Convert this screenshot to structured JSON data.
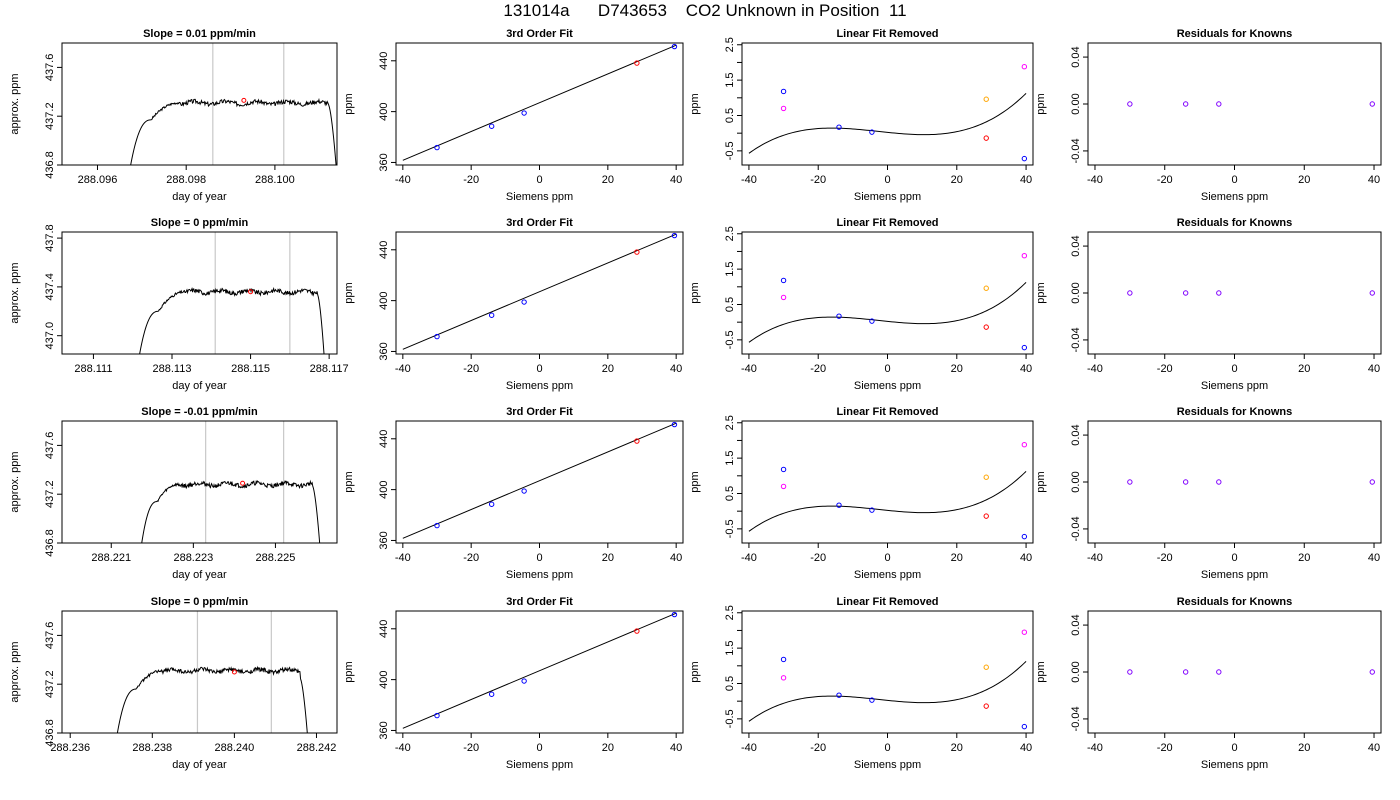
{
  "title": "131014a      D743653    CO2 Unknown in Position  11",
  "colors": {
    "known": "#0000ff",
    "unknown": "#ff0000",
    "raw_known": "#ff00ff",
    "raw_unknown": "#ffa500",
    "residual": "#8000ff",
    "curve": "#000000",
    "vline": "#c8c8c8"
  },
  "chart_data": [
    {
      "type": "line",
      "title": "Slope =  0.01  ppm/min",
      "xlabel": "day of year",
      "ylabel": "approx. ppm",
      "xlim": [
        288.0952,
        288.1014
      ],
      "ylim": [
        436.8,
        437.8
      ],
      "xticks": [
        288.096,
        288.098,
        288.1
      ],
      "xticklabels": [
        "288.096",
        "288.098",
        "288.100"
      ],
      "yticks": [
        436.8,
        437.2,
        437.6
      ],
      "yticklabels": [
        "436.8",
        "437.2",
        "437.6"
      ],
      "vlines": [
        288.0986,
        288.1002
      ],
      "marker": {
        "x": 288.0993,
        "y": 437.33
      },
      "trace": {
        "x0": 288.0967,
        "x1": 288.099,
        "x2": 288.1012,
        "x3": 288.1014,
        "base": 436.7,
        "plateau": 437.31,
        "start": 437.17,
        "end": 437.3
      }
    },
    {
      "type": "scatter",
      "title": "3rd Order Fit",
      "xlabel": "Siemens ppm",
      "ylabel": "ppm",
      "xlim": [
        -42,
        42
      ],
      "ylim": [
        358,
        454
      ],
      "xticks": [
        -40,
        -20,
        0,
        20,
        40
      ],
      "xticklabels": [
        "-40",
        "-20",
        "0",
        "20",
        "40"
      ],
      "yticks": [
        360,
        400,
        440
      ],
      "yticklabels": [
        "360",
        "400",
        "440"
      ],
      "line": [
        [
          -40,
          361.7
        ],
        [
          40,
          452.3
        ]
      ],
      "known": [
        {
          "x": -30,
          "y": 371.7
        },
        {
          "x": -14,
          "y": 388.5
        },
        {
          "x": -4.5,
          "y": 398.9
        },
        {
          "x": 39.5,
          "y": 451.2
        }
      ],
      "unknown": [
        {
          "x": 28.5,
          "y": 438.2
        }
      ]
    },
    {
      "type": "scatter",
      "title": "Linear Fit Removed",
      "xlabel": "Siemens ppm",
      "ylabel": "ppm",
      "xlim": [
        -42,
        42
      ],
      "ylim": [
        -0.9,
        2.55
      ],
      "xticks": [
        -40,
        -20,
        0,
        20,
        40
      ],
      "xticklabels": [
        "-40",
        "-20",
        "0",
        "20",
        "40"
      ],
      "yticks": [
        -0.5,
        0.5,
        1.5,
        2.5
      ],
      "yticklabels": [
        "-0.5",
        "0.5",
        "1.5",
        "2.5"
      ],
      "yminorticks": [
        0,
        1,
        2
      ],
      "curve": {
        "x0": -40,
        "x1": 40,
        "p": [
          0.0226,
          -0.01,
          0.00016,
          1.95e-05
        ]
      },
      "known": [
        {
          "x": -30,
          "y": 1.18
        },
        {
          "x": -14,
          "y": 0.17
        },
        {
          "x": -4.5,
          "y": 0.03
        },
        {
          "x": 39.5,
          "y": -0.72
        }
      ],
      "unknown": [
        {
          "x": 28.5,
          "y": -0.14
        }
      ],
      "raw_known": [
        {
          "x": -30,
          "y": 0.7
        },
        {
          "x": 39.5,
          "y": 1.88
        }
      ],
      "raw_unknown": [
        {
          "x": 28.5,
          "y": 0.96
        }
      ]
    },
    {
      "type": "scatter",
      "title": "Residuals for Knowns",
      "xlabel": "Siemens ppm",
      "ylabel": "ppm",
      "xlim": [
        -42,
        42
      ],
      "ylim": [
        -0.052,
        0.052
      ],
      "xticks": [
        -40,
        -20,
        0,
        20,
        40
      ],
      "xticklabels": [
        "-40",
        "-20",
        "0",
        "20",
        "40"
      ],
      "yticks": [
        -0.04,
        0,
        0.04
      ],
      "yticklabels": [
        "-0.04",
        "0.00",
        "0.04"
      ],
      "points": [
        {
          "x": -30,
          "y": 0
        },
        {
          "x": -14,
          "y": 0
        },
        {
          "x": -4.5,
          "y": 0
        },
        {
          "x": 39.5,
          "y": 0
        }
      ]
    },
    {
      "type": "line",
      "title": "Slope =  0  ppm/min",
      "xlabel": "day of year",
      "ylabel": "approx. ppm",
      "xlim": [
        288.1102,
        288.1172
      ],
      "ylim": [
        436.85,
        437.85
      ],
      "xticks": [
        288.111,
        288.113,
        288.115,
        288.117
      ],
      "xticklabels": [
        "288.111",
        "288.113",
        "288.115",
        "288.117"
      ],
      "yticks": [
        437.0,
        437.4,
        437.8
      ],
      "yticklabels": [
        "437.0",
        "437.4",
        "437.8"
      ],
      "vlines": [
        288.1141,
        288.116
      ],
      "marker": {
        "x": 288.115,
        "y": 437.36
      },
      "trace": {
        "x0": 288.1121,
        "x1": 288.1146,
        "x2": 288.1167,
        "x3": 288.1169,
        "base": 436.7,
        "plateau": 437.36,
        "start": 437.2,
        "end": 437.34
      }
    },
    {
      "type": "scatter",
      "title": "3rd Order Fit",
      "xlabel": "Siemens ppm",
      "ylabel": "ppm",
      "xlim": [
        -42,
        42
      ],
      "ylim": [
        358,
        454
      ],
      "xticks": [
        -40,
        -20,
        0,
        20,
        40
      ],
      "xticklabels": [
        "-40",
        "-20",
        "0",
        "20",
        "40"
      ],
      "yticks": [
        360,
        400,
        440
      ],
      "yticklabels": [
        "360",
        "400",
        "440"
      ],
      "line": [
        [
          -40,
          361.7
        ],
        [
          40,
          452.3
        ]
      ],
      "known": [
        {
          "x": -30,
          "y": 371.7
        },
        {
          "x": -14,
          "y": 388.5
        },
        {
          "x": -4.5,
          "y": 398.9
        },
        {
          "x": 39.5,
          "y": 451.2
        }
      ],
      "unknown": [
        {
          "x": 28.5,
          "y": 438.2
        }
      ]
    },
    {
      "type": "scatter",
      "title": "Linear Fit Removed",
      "xlabel": "Siemens ppm",
      "ylabel": "ppm",
      "xlim": [
        -42,
        42
      ],
      "ylim": [
        -0.9,
        2.55
      ],
      "xticks": [
        -40,
        -20,
        0,
        20,
        40
      ],
      "xticklabels": [
        "-40",
        "-20",
        "0",
        "20",
        "40"
      ],
      "yticks": [
        -0.5,
        0.5,
        1.5,
        2.5
      ],
      "yticklabels": [
        "-0.5",
        "0.5",
        "1.5",
        "2.5"
      ],
      "yminorticks": [
        0,
        1,
        2
      ],
      "curve": {
        "x0": -40,
        "x1": 40,
        "p": [
          0.0226,
          -0.01,
          0.00016,
          1.95e-05
        ]
      },
      "known": [
        {
          "x": -30,
          "y": 1.18
        },
        {
          "x": -14,
          "y": 0.17
        },
        {
          "x": -4.5,
          "y": 0.03
        },
        {
          "x": 39.5,
          "y": -0.72
        }
      ],
      "unknown": [
        {
          "x": 28.5,
          "y": -0.14
        }
      ],
      "raw_known": [
        {
          "x": -30,
          "y": 0.7
        },
        {
          "x": 39.5,
          "y": 1.88
        }
      ],
      "raw_unknown": [
        {
          "x": 28.5,
          "y": 0.96
        }
      ]
    },
    {
      "type": "scatter",
      "title": "Residuals for Knowns",
      "xlabel": "Siemens ppm",
      "ylabel": "ppm",
      "xlim": [
        -42,
        42
      ],
      "ylim": [
        -0.052,
        0.052
      ],
      "xticks": [
        -40,
        -20,
        0,
        20,
        40
      ],
      "xticklabels": [
        "-40",
        "-20",
        "0",
        "20",
        "40"
      ],
      "yticks": [
        -0.04,
        0,
        0.04
      ],
      "yticklabels": [
        "-0.04",
        "0.00",
        "0.04"
      ],
      "points": [
        {
          "x": -30,
          "y": 0
        },
        {
          "x": -14,
          "y": 0
        },
        {
          "x": -4.5,
          "y": 0
        },
        {
          "x": 39.5,
          "y": 0
        }
      ]
    },
    {
      "type": "line",
      "title": "Slope =  -0.01  ppm/min",
      "xlabel": "day of year",
      "ylabel": "approx. ppm",
      "xlim": [
        288.2198,
        288.2265
      ],
      "ylim": [
        436.8,
        437.8
      ],
      "xticks": [
        288.221,
        288.223,
        288.225
      ],
      "xticklabels": [
        "288.221",
        "288.223",
        "288.225"
      ],
      "yticks": [
        436.8,
        437.2,
        437.6
      ],
      "yticklabels": [
        "436.8",
        "437.2",
        "437.6"
      ],
      "vlines": [
        288.2233,
        288.2252
      ],
      "marker": {
        "x": 288.2242,
        "y": 437.29
      },
      "trace": {
        "x0": 288.2217,
        "x1": 288.2236,
        "x2": 288.2259,
        "x3": 288.2261,
        "base": 436.7,
        "plateau": 437.28,
        "start": 437.14,
        "end": 437.27
      }
    },
    {
      "type": "scatter",
      "title": "3rd Order Fit",
      "xlabel": "Siemens ppm",
      "ylabel": "ppm",
      "xlim": [
        -42,
        42
      ],
      "ylim": [
        358,
        454
      ],
      "xticks": [
        -40,
        -20,
        0,
        20,
        40
      ],
      "xticklabels": [
        "-40",
        "-20",
        "0",
        "20",
        "40"
      ],
      "yticks": [
        360,
        400,
        440
      ],
      "yticklabels": [
        "360",
        "400",
        "440"
      ],
      "line": [
        [
          -40,
          361.7
        ],
        [
          40,
          452.3
        ]
      ],
      "known": [
        {
          "x": -30,
          "y": 371.7
        },
        {
          "x": -14,
          "y": 388.5
        },
        {
          "x": -4.5,
          "y": 398.9
        },
        {
          "x": 39.5,
          "y": 451.2
        }
      ],
      "unknown": [
        {
          "x": 28.5,
          "y": 438.2
        }
      ]
    },
    {
      "type": "scatter",
      "title": "Linear Fit Removed",
      "xlabel": "Siemens ppm",
      "ylabel": "ppm",
      "xlim": [
        -42,
        42
      ],
      "ylim": [
        -0.9,
        2.55
      ],
      "xticks": [
        -40,
        -20,
        0,
        20,
        40
      ],
      "xticklabels": [
        "-40",
        "-20",
        "0",
        "20",
        "40"
      ],
      "yticks": [
        -0.5,
        0.5,
        1.5,
        2.5
      ],
      "yticklabels": [
        "-0.5",
        "0.5",
        "1.5",
        "2.5"
      ],
      "yminorticks": [
        0,
        1,
        2
      ],
      "curve": {
        "x0": -40,
        "x1": 40,
        "p": [
          0.0226,
          -0.01,
          0.00016,
          1.95e-05
        ]
      },
      "known": [
        {
          "x": -30,
          "y": 1.18
        },
        {
          "x": -14,
          "y": 0.17
        },
        {
          "x": -4.5,
          "y": 0.03
        },
        {
          "x": 39.5,
          "y": -0.72
        }
      ],
      "unknown": [
        {
          "x": 28.5,
          "y": -0.14
        }
      ],
      "raw_known": [
        {
          "x": -30,
          "y": 0.7
        },
        {
          "x": 39.5,
          "y": 1.88
        }
      ],
      "raw_unknown": [
        {
          "x": 28.5,
          "y": 0.96
        }
      ]
    },
    {
      "type": "scatter",
      "title": "Residuals for Knowns",
      "xlabel": "Siemens ppm",
      "ylabel": "ppm",
      "xlim": [
        -42,
        42
      ],
      "ylim": [
        -0.052,
        0.052
      ],
      "xticks": [
        -40,
        -20,
        0,
        20,
        40
      ],
      "xticklabels": [
        "-40",
        "-20",
        "0",
        "20",
        "40"
      ],
      "yticks": [
        -0.04,
        0,
        0.04
      ],
      "yticklabels": [
        "-0.04",
        "0.00",
        "0.04"
      ],
      "points": [
        {
          "x": -30,
          "y": 0
        },
        {
          "x": -14,
          "y": 0
        },
        {
          "x": -4.5,
          "y": 0
        },
        {
          "x": 39.5,
          "y": 0
        }
      ]
    },
    {
      "type": "line",
      "title": "Slope =  0  ppm/min",
      "xlabel": "day of year",
      "ylabel": "approx. ppm",
      "xlim": [
        288.2358,
        288.2425
      ],
      "ylim": [
        436.8,
        437.8
      ],
      "xticks": [
        288.236,
        288.238,
        288.24,
        288.242
      ],
      "xticklabels": [
        "288.236",
        "288.238",
        "288.240",
        "288.242"
      ],
      "yticks": [
        436.8,
        437.2,
        437.6
      ],
      "yticklabels": [
        "436.8",
        "437.2",
        "437.6"
      ],
      "vlines": [
        288.2391,
        288.2409
      ],
      "marker": {
        "x": 288.24,
        "y": 437.3
      },
      "trace": {
        "x0": 288.2371,
        "x1": 288.2394,
        "x2": 288.2416,
        "x3": 288.2418,
        "base": 436.7,
        "plateau": 437.31,
        "start": 437.16,
        "end": 437.25
      }
    },
    {
      "type": "scatter",
      "title": "3rd Order Fit",
      "xlabel": "Siemens ppm",
      "ylabel": "ppm",
      "xlim": [
        -42,
        42
      ],
      "ylim": [
        358,
        454
      ],
      "xticks": [
        -40,
        -20,
        0,
        20,
        40
      ],
      "xticklabels": [
        "-40",
        "-20",
        "0",
        "20",
        "40"
      ],
      "yticks": [
        360,
        400,
        440
      ],
      "yticklabels": [
        "360",
        "400",
        "440"
      ],
      "line": [
        [
          -40,
          361.7
        ],
        [
          40,
          452.3
        ]
      ],
      "known": [
        {
          "x": -30,
          "y": 371.7
        },
        {
          "x": -14,
          "y": 388.5
        },
        {
          "x": -4.5,
          "y": 398.9
        },
        {
          "x": 39.5,
          "y": 451.2
        }
      ],
      "unknown": [
        {
          "x": 28.5,
          "y": 438.2
        }
      ]
    },
    {
      "type": "scatter",
      "title": "Linear Fit Removed",
      "xlabel": "Siemens ppm",
      "ylabel": "ppm",
      "xlim": [
        -42,
        42
      ],
      "ylim": [
        -0.9,
        2.55
      ],
      "xticks": [
        -40,
        -20,
        0,
        20,
        40
      ],
      "xticklabels": [
        "-40",
        "-20",
        "0",
        "20",
        "40"
      ],
      "yticks": [
        -0.5,
        0.5,
        1.5,
        2.5
      ],
      "yticklabels": [
        "-0.5",
        "0.5",
        "1.5",
        "2.5"
      ],
      "yminorticks": [
        0,
        1,
        2
      ],
      "curve": {
        "x0": -40,
        "x1": 40,
        "p": [
          0.0226,
          -0.01,
          0.00016,
          1.95e-05
        ]
      },
      "known": [
        {
          "x": -30,
          "y": 1.18
        },
        {
          "x": -14,
          "y": 0.17
        },
        {
          "x": -4.5,
          "y": 0.03
        },
        {
          "x": 39.5,
          "y": -0.72
        }
      ],
      "unknown": [
        {
          "x": 28.5,
          "y": -0.14
        }
      ],
      "raw_known": [
        {
          "x": -30,
          "y": 0.66
        },
        {
          "x": 39.5,
          "y": 1.95
        }
      ],
      "raw_unknown": [
        {
          "x": 28.5,
          "y": 0.96
        }
      ]
    },
    {
      "type": "scatter",
      "title": "Residuals for Knowns",
      "xlabel": "Siemens ppm",
      "ylabel": "ppm",
      "xlim": [
        -42,
        42
      ],
      "ylim": [
        -0.052,
        0.052
      ],
      "xticks": [
        -40,
        -20,
        0,
        20,
        40
      ],
      "xticklabels": [
        "-40",
        "-20",
        "0",
        "20",
        "40"
      ],
      "yticks": [
        -0.04,
        0,
        0.04
      ],
      "yticklabels": [
        "-0.04",
        "0.00",
        "0.04"
      ],
      "points": [
        {
          "x": -30,
          "y": 0
        },
        {
          "x": -14,
          "y": 0
        },
        {
          "x": -4.5,
          "y": 0
        },
        {
          "x": 39.5,
          "y": 0
        }
      ]
    }
  ]
}
